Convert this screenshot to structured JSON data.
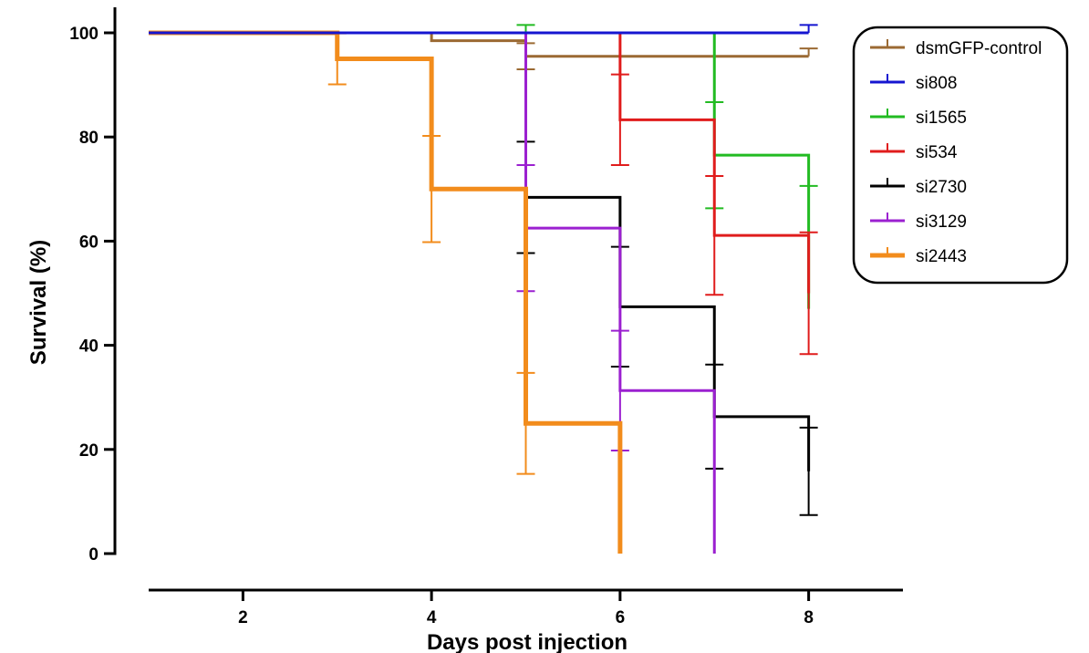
{
  "chart_data": {
    "type": "line",
    "subtype": "kaplan-meier step survival with error bars",
    "title": "",
    "xlabel": "Days post injection",
    "ylabel": "Survival (%)",
    "xlim": [
      1,
      9
    ],
    "ylim": [
      0,
      100
    ],
    "x_ticks": [
      2,
      4,
      6,
      8
    ],
    "y_ticks": [
      0,
      20,
      40,
      60,
      80,
      100
    ],
    "grid": false,
    "legend_position": "top-right",
    "series": [
      {
        "name": "dsmGFP-control",
        "color": "#9b6a33",
        "width": 3,
        "steps": [
          [
            1,
            100
          ],
          [
            4,
            98.5
          ],
          [
            5,
            95.5
          ],
          [
            8,
            95.5
          ]
        ],
        "errors": [
          [
            4,
            98.5,
            98.5,
            100
          ],
          [
            5,
            95.5,
            93,
            98
          ],
          [
            8,
            95.5,
            95.5,
            97
          ]
        ]
      },
      {
        "name": "si808",
        "color": "#1515d0",
        "width": 3,
        "steps": [
          [
            1,
            100
          ],
          [
            8,
            100
          ]
        ],
        "errors": [
          [
            8,
            100,
            100,
            101.5
          ]
        ]
      },
      {
        "name": "si1565",
        "color": "#22bb22",
        "width": 3,
        "steps": [
          [
            1,
            100
          ],
          [
            7,
            76.5
          ],
          [
            8,
            47
          ]
        ],
        "errors": [
          [
            5,
            100,
            100,
            101.5
          ],
          [
            7,
            76.5,
            66.3,
            86.7
          ],
          [
            8,
            47,
            47,
            70.6
          ]
        ]
      },
      {
        "name": "si534",
        "color": "#e01c1c",
        "width": 3,
        "steps": [
          [
            1,
            100
          ],
          [
            6,
            83.3
          ],
          [
            7,
            61.1
          ],
          [
            8,
            50
          ]
        ],
        "errors": [
          [
            6,
            83.3,
            74.6,
            92
          ],
          [
            7,
            61.1,
            49.7,
            72.5
          ],
          [
            8,
            50,
            38.3,
            61.7
          ]
        ]
      },
      {
        "name": "si2730",
        "color": "#000000",
        "width": 3,
        "steps": [
          [
            1,
            100
          ],
          [
            5,
            68.4
          ],
          [
            6,
            47.4
          ],
          [
            7,
            26.3
          ],
          [
            8,
            15.8
          ]
        ],
        "errors": [
          [
            5,
            68.4,
            57.7,
            79.1
          ],
          [
            6,
            47.4,
            35.9,
            58.9
          ],
          [
            7,
            26.3,
            16.3,
            36.3
          ],
          [
            8,
            15.8,
            7.4,
            24.2
          ]
        ]
      },
      {
        "name": "si3129",
        "color": "#9b20d0",
        "width": 3,
        "steps": [
          [
            1,
            100
          ],
          [
            5,
            62.5
          ],
          [
            6,
            31.3
          ],
          [
            7,
            0
          ]
        ],
        "errors": [
          [
            5,
            62.5,
            50.4,
            74.6
          ],
          [
            6,
            31.3,
            19.8,
            42.8
          ]
        ]
      },
      {
        "name": "si2443",
        "color": "#f28c1c",
        "width": 5,
        "steps": [
          [
            1,
            100
          ],
          [
            3,
            95
          ],
          [
            4,
            70
          ],
          [
            5,
            25
          ],
          [
            6,
            0
          ]
        ],
        "errors": [
          [
            3,
            95,
            90.1,
            99.9
          ],
          [
            4,
            70,
            59.8,
            80.2
          ],
          [
            5,
            25,
            15.3,
            34.7
          ]
        ]
      }
    ]
  }
}
